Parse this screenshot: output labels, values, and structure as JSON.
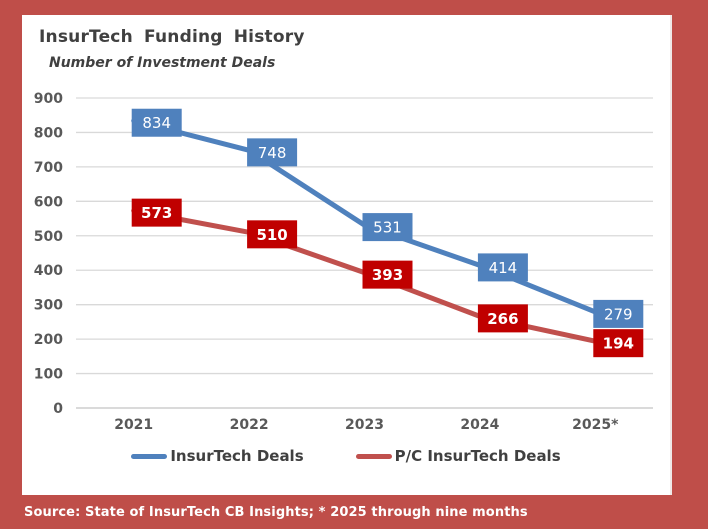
{
  "header": {
    "title": "InsurTech Funding History",
    "subtitle": "Number of Investment Deals"
  },
  "chart_data": {
    "type": "line",
    "title": "InsurTech Funding History",
    "subtitle": "Number of Investment Deals",
    "categories": [
      "2021",
      "2022",
      "2023",
      "2024",
      "2025*"
    ],
    "series": [
      {
        "name": "InsurTech Deals",
        "values": [
          834,
          748,
          531,
          414,
          279
        ],
        "line_color": "#4f81bd",
        "label_bg": "#4f81bd",
        "label_weight": "normal"
      },
      {
        "name": "P/C InsurTech Deals",
        "values": [
          573,
          510,
          393,
          266,
          194
        ],
        "line_color": "#c0504d",
        "label_bg": "#c00000",
        "label_weight": "bold"
      }
    ],
    "ylim": [
      0,
      900
    ],
    "ytick_step": 100,
    "grid": true,
    "legend_position": "bottom",
    "data_labels": true
  },
  "colors": {
    "frame": "#bf4e49",
    "panel": "#ffffff",
    "grid": "#d9d9d9",
    "baseline": "#c3c3c3",
    "axis_text": "#595959",
    "title_text": "#404040",
    "label_text": "#ffffff"
  },
  "footer": {
    "source": "Source: State of InsurTech CB Insights; * 2025 through nine months"
  }
}
